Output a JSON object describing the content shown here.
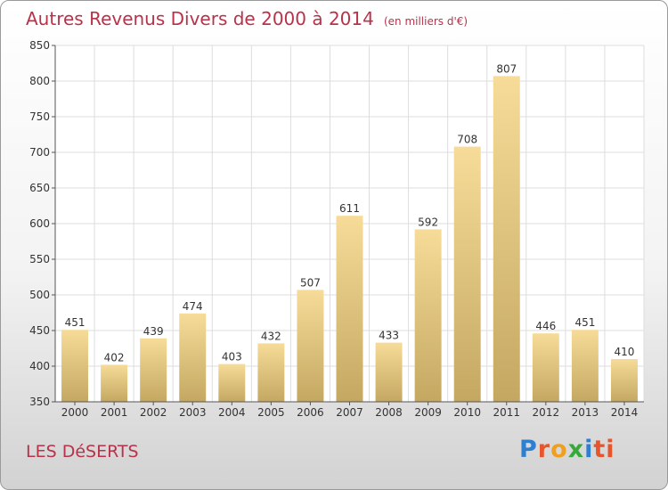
{
  "header": {
    "title": "Autres Revenus Divers de 2000 à 2014",
    "subtitle": "(en milliers d'€)"
  },
  "footer": {
    "place": "LES DéSERTS",
    "brand": "Proxiti",
    "brand_letters": [
      "P",
      "r",
      "o",
      "x",
      "i",
      "ti"
    ]
  },
  "chart_data": {
    "type": "bar",
    "categories": [
      "2000",
      "2001",
      "2002",
      "2003",
      "2004",
      "2005",
      "2006",
      "2007",
      "2008",
      "2009",
      "2010",
      "2011",
      "2012",
      "2013",
      "2014"
    ],
    "values": [
      451,
      402,
      439,
      474,
      403,
      432,
      507,
      611,
      433,
      592,
      708,
      807,
      446,
      451,
      410
    ],
    "ylim": [
      350,
      850
    ],
    "yticks": [
      350,
      400,
      450,
      500,
      550,
      600,
      650,
      700,
      750,
      800,
      850
    ],
    "grid": true,
    "colors": {
      "bar_top": "#f6dc98",
      "bar_bottom": "#c4a862",
      "grid": "#dddddd",
      "text": "#333333"
    }
  }
}
